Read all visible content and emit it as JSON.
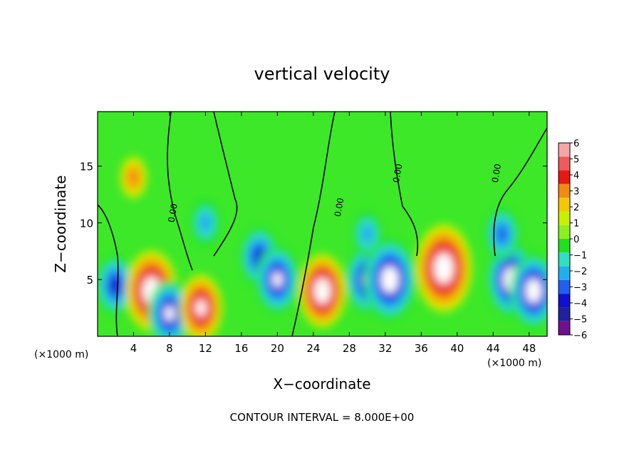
{
  "chart_data": {
    "type": "heatmap",
    "title": "vertical velocity",
    "xlabel": "X−coordinate",
    "ylabel": "Z−coordinate",
    "x_unit_left": "(×1000 m)",
    "x_unit_right": "(×1000 m)",
    "footer": "CONTOUR INTERVAL = 8.000E+00",
    "xlim": [
      0,
      50
    ],
    "ylim": [
      0,
      19.8
    ],
    "x_ticks": [
      4,
      8,
      12,
      16,
      20,
      24,
      28,
      32,
      36,
      40,
      44,
      48
    ],
    "x_tick_labels": [
      "4",
      "8",
      "12",
      "16",
      "20",
      "24",
      "28",
      "32",
      "36",
      "40",
      "44",
      "48"
    ],
    "y_ticks": [
      5,
      10,
      15
    ],
    "y_tick_labels": [
      "5",
      "10",
      "15"
    ],
    "colorbar": {
      "levels": [
        6,
        5,
        4,
        3,
        2,
        1,
        0,
        -1,
        -2,
        -3,
        -4,
        -5,
        -6
      ],
      "labels": [
        "6",
        "5",
        "4",
        "3",
        "2",
        "1",
        "0",
        "−1",
        "−2",
        "−3",
        "−4",
        "−5",
        "−6"
      ],
      "colors": [
        "#f5a6a6",
        "#f05a5a",
        "#e81818",
        "#f48a10",
        "#f4c800",
        "#c8f000",
        "#8cf020",
        "#20e020",
        "#30e0c0",
        "#20b0f0",
        "#2060f0",
        "#1010d0",
        "#2020a0",
        "#701090"
      ]
    },
    "contour_labels": [
      "0.00",
      "0.00",
      "0.00",
      "0.00"
    ],
    "cells": [
      {
        "x": 2,
        "z": 4.5,
        "w": -4
      },
      {
        "x": 6,
        "z": 4,
        "w": 7
      },
      {
        "x": 8,
        "z": 2,
        "w": -5
      },
      {
        "x": 11.5,
        "z": 2.5,
        "w": 5
      },
      {
        "x": 18,
        "z": 7,
        "w": -4
      },
      {
        "x": 20,
        "z": 5,
        "w": -5
      },
      {
        "x": 25,
        "z": 4,
        "w": 6
      },
      {
        "x": 30,
        "z": 5,
        "w": -5
      },
      {
        "x": 32.5,
        "z": 5,
        "w": -7
      },
      {
        "x": 38.5,
        "z": 6,
        "w": 8
      },
      {
        "x": 46,
        "z": 5,
        "w": -6
      },
      {
        "x": 48.5,
        "z": 4,
        "w": -6
      },
      {
        "x": 12,
        "z": 10,
        "w": -2
      },
      {
        "x": 30,
        "z": 9,
        "w": -2
      },
      {
        "x": 45,
        "z": 9,
        "w": -3
      },
      {
        "x": 4,
        "z": 14,
        "w": 1.5
      }
    ]
  }
}
